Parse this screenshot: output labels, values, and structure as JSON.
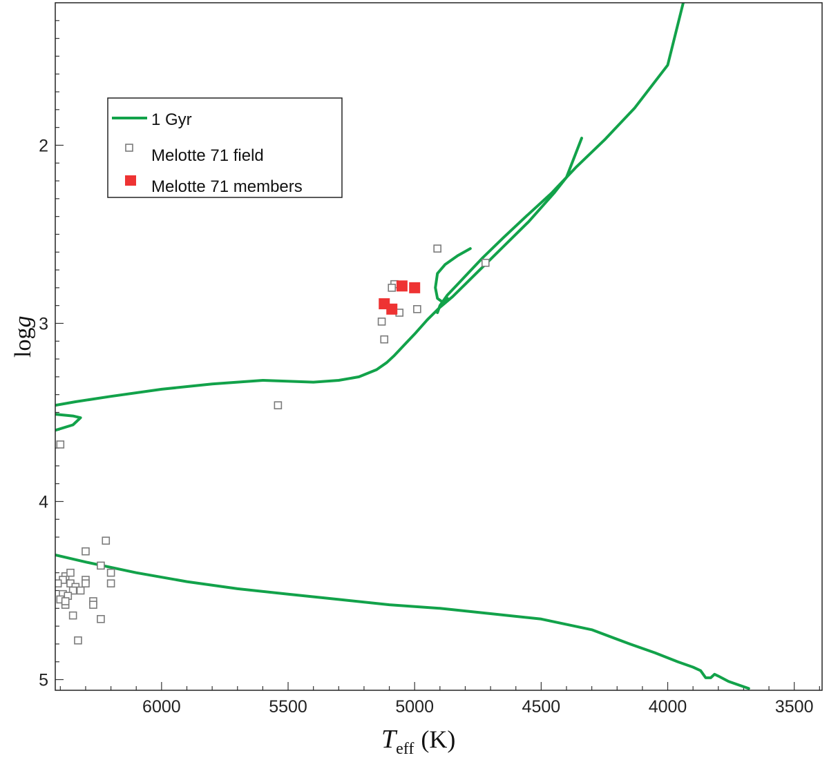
{
  "chart_data": {
    "type": "scatter",
    "title": "",
    "xlabel": "T",
    "xlabel_sub": "eff",
    "xlabel_unit": "(K)",
    "ylabel": "log",
    "ylabel_var": "g",
    "xlim": [
      6420,
      3390
    ],
    "ylim": [
      1.2,
      5.06
    ],
    "x_reversed": true,
    "y_reversed": true,
    "x_ticks": [
      6000,
      5500,
      5000,
      4500,
      4000,
      3500
    ],
    "y_ticks": [
      2,
      3,
      4,
      5
    ],
    "grid": false,
    "legend_position": "upper-left",
    "colors": {
      "isochrone": "#12a24a",
      "field": "#7a7a7a",
      "members": "#ee3333"
    },
    "series": [
      {
        "name": "1 Gyr",
        "kind": "line",
        "segments": [
          {
            "x": [
              6420,
              6340,
              6200,
              6000,
              5800,
              5600,
              5400,
              5300,
              5220,
              5150,
              5110,
              5080,
              5040,
              5000,
              4950,
              4900,
              4850,
              4800,
              4750,
              4700,
              4650,
              4600,
              4550,
              4500,
              4450,
              4400,
              4340
            ],
            "y": [
              3.46,
              3.44,
              3.41,
              3.37,
              3.34,
              3.32,
              3.33,
              3.32,
              3.3,
              3.26,
              3.22,
              3.18,
              3.12,
              3.06,
              2.98,
              2.91,
              2.85,
              2.78,
              2.71,
              2.64,
              2.57,
              2.5,
              2.43,
              2.35,
              2.27,
              2.18,
              1.96
            ]
          },
          {
            "x": [
              4910,
              4900,
              4870,
              4830,
              4790,
              4730,
              4650,
              4560,
              4460,
              4360,
              4250,
              4130,
              4000,
              3935
            ],
            "y": [
              2.94,
              2.9,
              2.84,
              2.78,
              2.72,
              2.63,
              2.52,
              2.4,
              2.27,
              2.12,
              1.97,
              1.79,
              1.55,
              1.18
            ]
          },
          {
            "x": [
              4870,
              4890,
              4910,
              4918,
              4910,
              4880,
              4830,
              4780
            ],
            "y": [
              2.86,
              2.88,
              2.86,
              2.8,
              2.72,
              2.67,
              2.62,
              2.58
            ]
          },
          {
            "x": [
              6420,
              6350,
              6320,
              6350,
              6420
            ],
            "y": [
              3.51,
              3.52,
              3.53,
              3.57,
              3.6
            ]
          },
          {
            "x": [
              6420,
              6300,
              6100,
              5900,
              5700,
              5500,
              5300,
              5100,
              4900,
              4700,
              4500,
              4300,
              4150,
              4050,
              3960,
              3900,
              3870,
              3850,
              3830,
              3815,
              3800,
              3760,
              3720,
              3680
            ],
            "y": [
              4.3,
              4.34,
              4.4,
              4.45,
              4.49,
              4.52,
              4.55,
              4.58,
              4.6,
              4.63,
              4.66,
              4.72,
              4.8,
              4.85,
              4.9,
              4.93,
              4.95,
              4.99,
              4.99,
              4.97,
              4.98,
              5.01,
              5.03,
              5.05
            ]
          }
        ]
      },
      {
        "name": "Melotte 71 field",
        "kind": "scatter",
        "marker": "open-square",
        "x": [
          4910,
          4720,
          5080,
          5090,
          5060,
          4990,
          5130,
          5120,
          5540,
          6400,
          6220,
          6300,
          6240,
          6200,
          6200,
          6380,
          6390,
          6410,
          6360,
          6360,
          6340,
          6350,
          6300,
          6300,
          6270,
          6270,
          6320,
          6390,
          6400,
          6380,
          6370,
          6380,
          6240,
          6350,
          6330
        ],
        "y": [
          2.58,
          2.66,
          2.78,
          2.8,
          2.94,
          2.92,
          2.99,
          3.09,
          3.46,
          3.68,
          4.22,
          4.28,
          4.36,
          4.4,
          4.46,
          4.42,
          4.44,
          4.46,
          4.4,
          4.46,
          4.48,
          4.5,
          4.44,
          4.46,
          4.56,
          4.58,
          4.5,
          4.52,
          4.55,
          4.58,
          4.53,
          4.56,
          4.66,
          4.64,
          4.78
        ]
      },
      {
        "name": "Melotte 71 members",
        "kind": "scatter",
        "marker": "filled-square",
        "x": [
          5050,
          5000,
          5120,
          5090
        ],
        "y": [
          2.79,
          2.8,
          2.89,
          2.92
        ]
      }
    ]
  }
}
